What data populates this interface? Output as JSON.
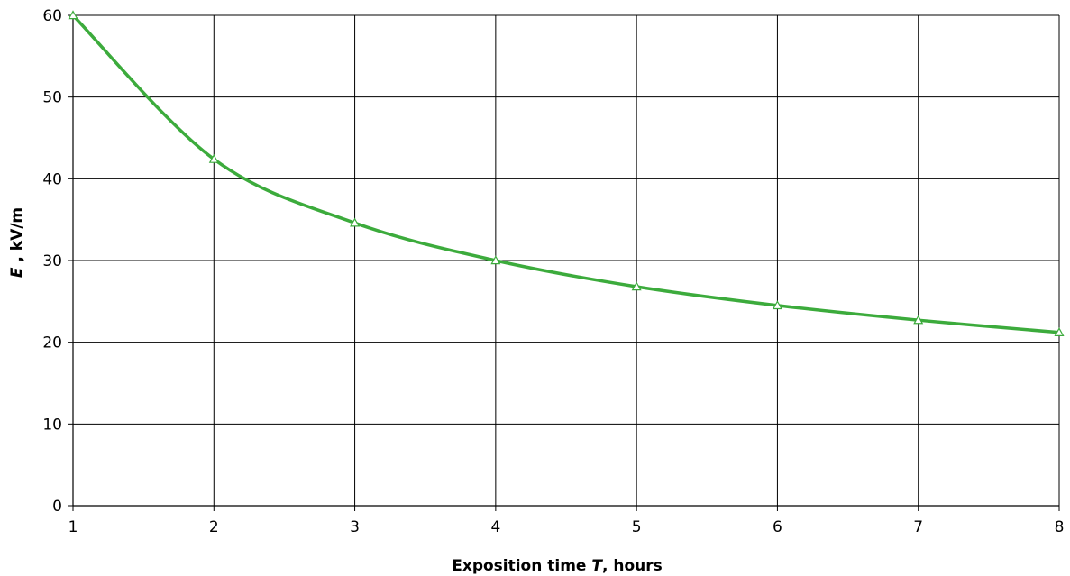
{
  "chart_data": {
    "type": "line",
    "title": "",
    "xlabel_parts": [
      "Exposition time ",
      "T",
      ", hours"
    ],
    "ylabel_parts": [
      "E",
      " , kV/m"
    ],
    "xlim": [
      1,
      8
    ],
    "ylim": [
      0,
      60
    ],
    "xticks": [
      1,
      2,
      3,
      4,
      5,
      6,
      7,
      8
    ],
    "yticks": [
      0,
      10,
      20,
      30,
      40,
      50,
      60
    ],
    "grid": true,
    "legend": "none",
    "series": [
      {
        "color": "#3cab3c",
        "marker": "triangle",
        "x": [
          1,
          2,
          3,
          4,
          5,
          6,
          7,
          8
        ],
        "y": [
          60,
          42.4,
          34.6,
          30,
          26.8,
          24.5,
          22.7,
          21.2
        ]
      }
    ]
  }
}
